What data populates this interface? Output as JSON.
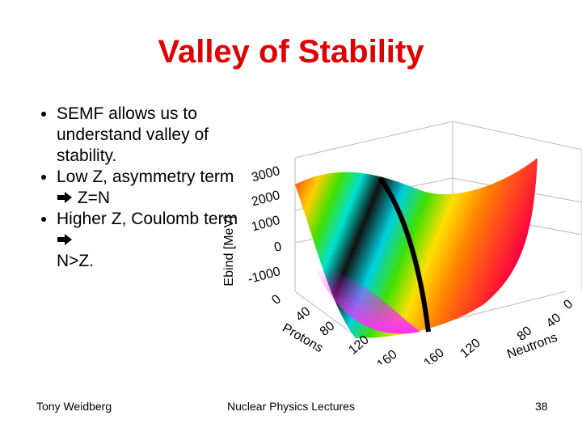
{
  "header": {
    "title": "Valley of Stability"
  },
  "bullets": [
    {
      "text": "SEMF allows us to understand valley of stability."
    },
    {
      "text": "Low Z, asymmetry term",
      "result": "Z=N"
    },
    {
      "text": "Higher Z, Coulomb term",
      "result": "N>Z."
    }
  ],
  "figure": {
    "z_axis": {
      "label": "Ebind [MeV]",
      "ticks": [
        3000,
        2000,
        1000,
        0,
        -1000
      ]
    },
    "protons_axis": {
      "label": "Protons",
      "ticks": [
        0,
        40,
        80,
        120,
        160
      ]
    },
    "neutrons_axis": {
      "label": "Neutrons",
      "ticks": [
        0,
        40,
        80,
        120,
        160
      ]
    }
  },
  "footer": {
    "author": "Tony Weidberg",
    "course": "Nuclear Physics Lectures",
    "page": "38"
  }
}
